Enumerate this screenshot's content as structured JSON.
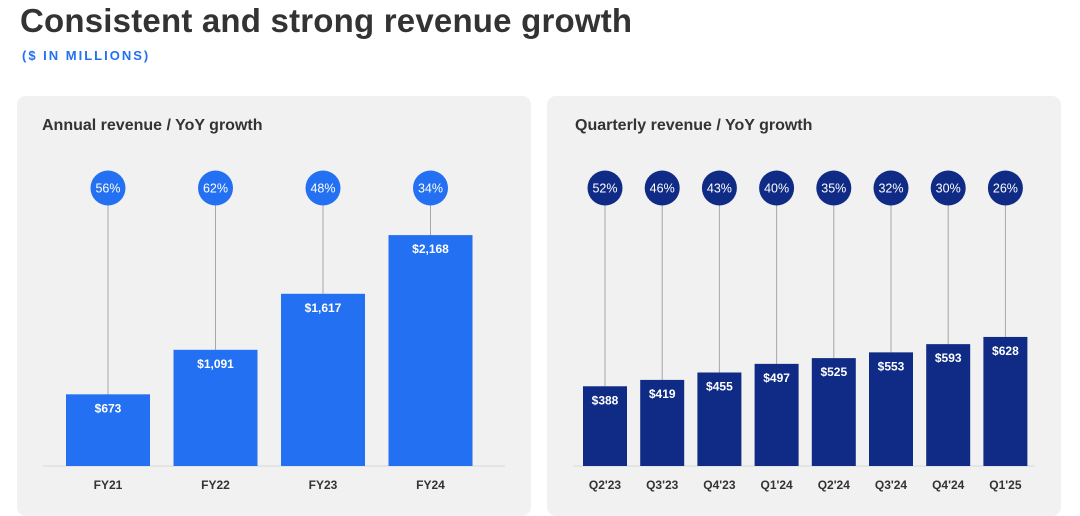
{
  "title": "Consistent and strong revenue growth",
  "subtitle": "($ IN MILLIONS)",
  "colors": {
    "annual_bar": "#2370f2",
    "quarterly_bar": "#0f2b85",
    "subtitle": "#2370f2",
    "panel_bg": "#f1f1f1"
  },
  "chart_data": [
    {
      "type": "bar",
      "title": "Annual revenue / YoY growth",
      "categories": [
        "FY21",
        "FY22",
        "FY23",
        "FY24"
      ],
      "values": [
        673,
        1091,
        1617,
        2168
      ],
      "value_labels": [
        "$673",
        "$1,091",
        "$1,617",
        "$2,168"
      ],
      "growth_labels": [
        "56%",
        "62%",
        "48%",
        "34%"
      ],
      "unit": "$ in millions"
    },
    {
      "type": "bar",
      "title": "Quarterly revenue / YoY growth",
      "categories": [
        "Q2'23",
        "Q3'23",
        "Q4'23",
        "Q1'24",
        "Q2'24",
        "Q3'24",
        "Q4'24",
        "Q1'25"
      ],
      "values": [
        388,
        419,
        455,
        497,
        525,
        553,
        593,
        628
      ],
      "value_labels": [
        "$388",
        "$419",
        "$455",
        "$497",
        "$525",
        "$553",
        "$593",
        "$628"
      ],
      "growth_labels": [
        "52%",
        "46%",
        "43%",
        "40%",
        "35%",
        "32%",
        "30%",
        "26%"
      ],
      "unit": "$ in millions"
    }
  ]
}
